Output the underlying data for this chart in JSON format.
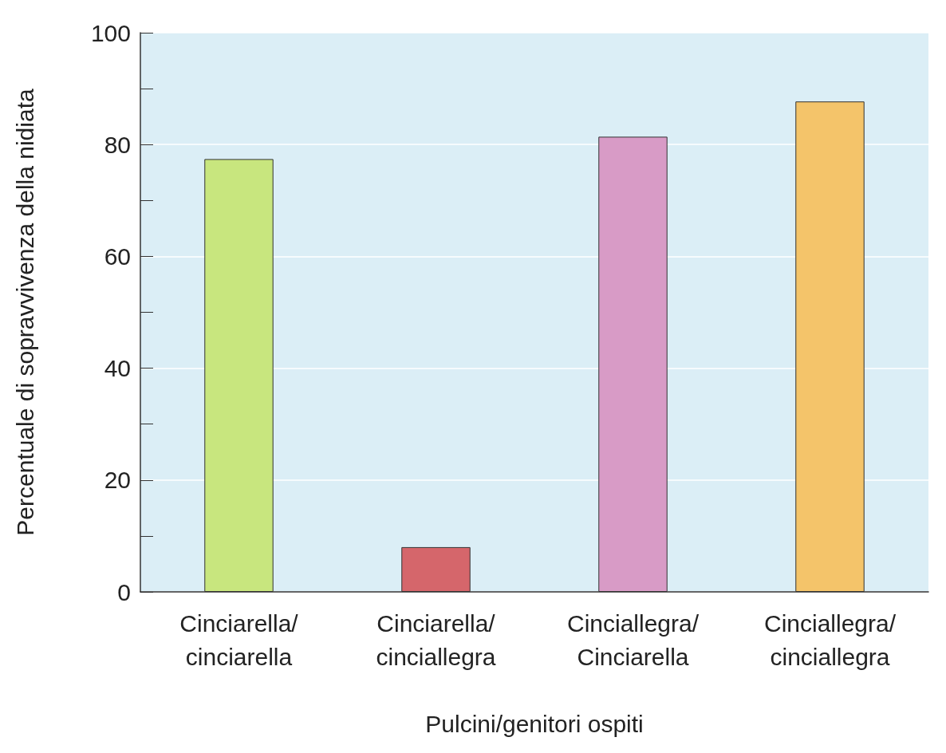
{
  "chart_data": {
    "type": "bar",
    "xlabel": "Pulcini/genitori ospiti",
    "ylabel": "Percentuale di sopravvivenza della nidiata",
    "categories": [
      "Cinciarella/cinciarella",
      "Cinciarella/cinciallegra",
      "Cinciallegra/Cinciarella",
      "Cinciallegra/cinciallegra"
    ],
    "values": [
      77.4,
      8,
      81.4,
      87.7
    ],
    "colors": [
      "#c8e67e",
      "#d5666b",
      "#d89bc6",
      "#f4c46a"
    ],
    "ylim": [
      0,
      100
    ],
    "yticks": [
      0,
      {
        "value": 10,
        "label": null
      },
      20,
      {
        "value": 30,
        "label": null
      },
      40,
      {
        "value": 50,
        "label": null
      },
      60,
      {
        "value": 70,
        "label": null
      },
      80,
      {
        "value": 90,
        "label": null
      },
      100
    ],
    "grid": "y"
  }
}
